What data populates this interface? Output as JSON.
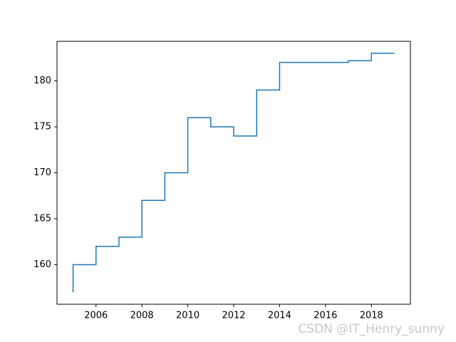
{
  "chart_data": {
    "type": "line",
    "step": "pre",
    "x": [
      2005,
      2006,
      2007,
      2008,
      2009,
      2010,
      2011,
      2012,
      2013,
      2014,
      2015,
      2016,
      2017,
      2018,
      2019
    ],
    "series": [
      {
        "color": "#1f77b4",
        "values": [
          157,
          160,
          162,
          163,
          167,
          170,
          176,
          175,
          174,
          179,
          182,
          182,
          182,
          182.2,
          183
        ]
      }
    ],
    "xlim": [
      2004.3,
      2019.7
    ],
    "xticks": [
      2006,
      2008,
      2010,
      2012,
      2014,
      2016,
      2018
    ],
    "ylim": [
      155.7,
      184.3
    ],
    "yticks": [
      160,
      165,
      170,
      175,
      180
    ],
    "grid": false
  },
  "watermark": "CSDN @IT_Henry_sunny"
}
